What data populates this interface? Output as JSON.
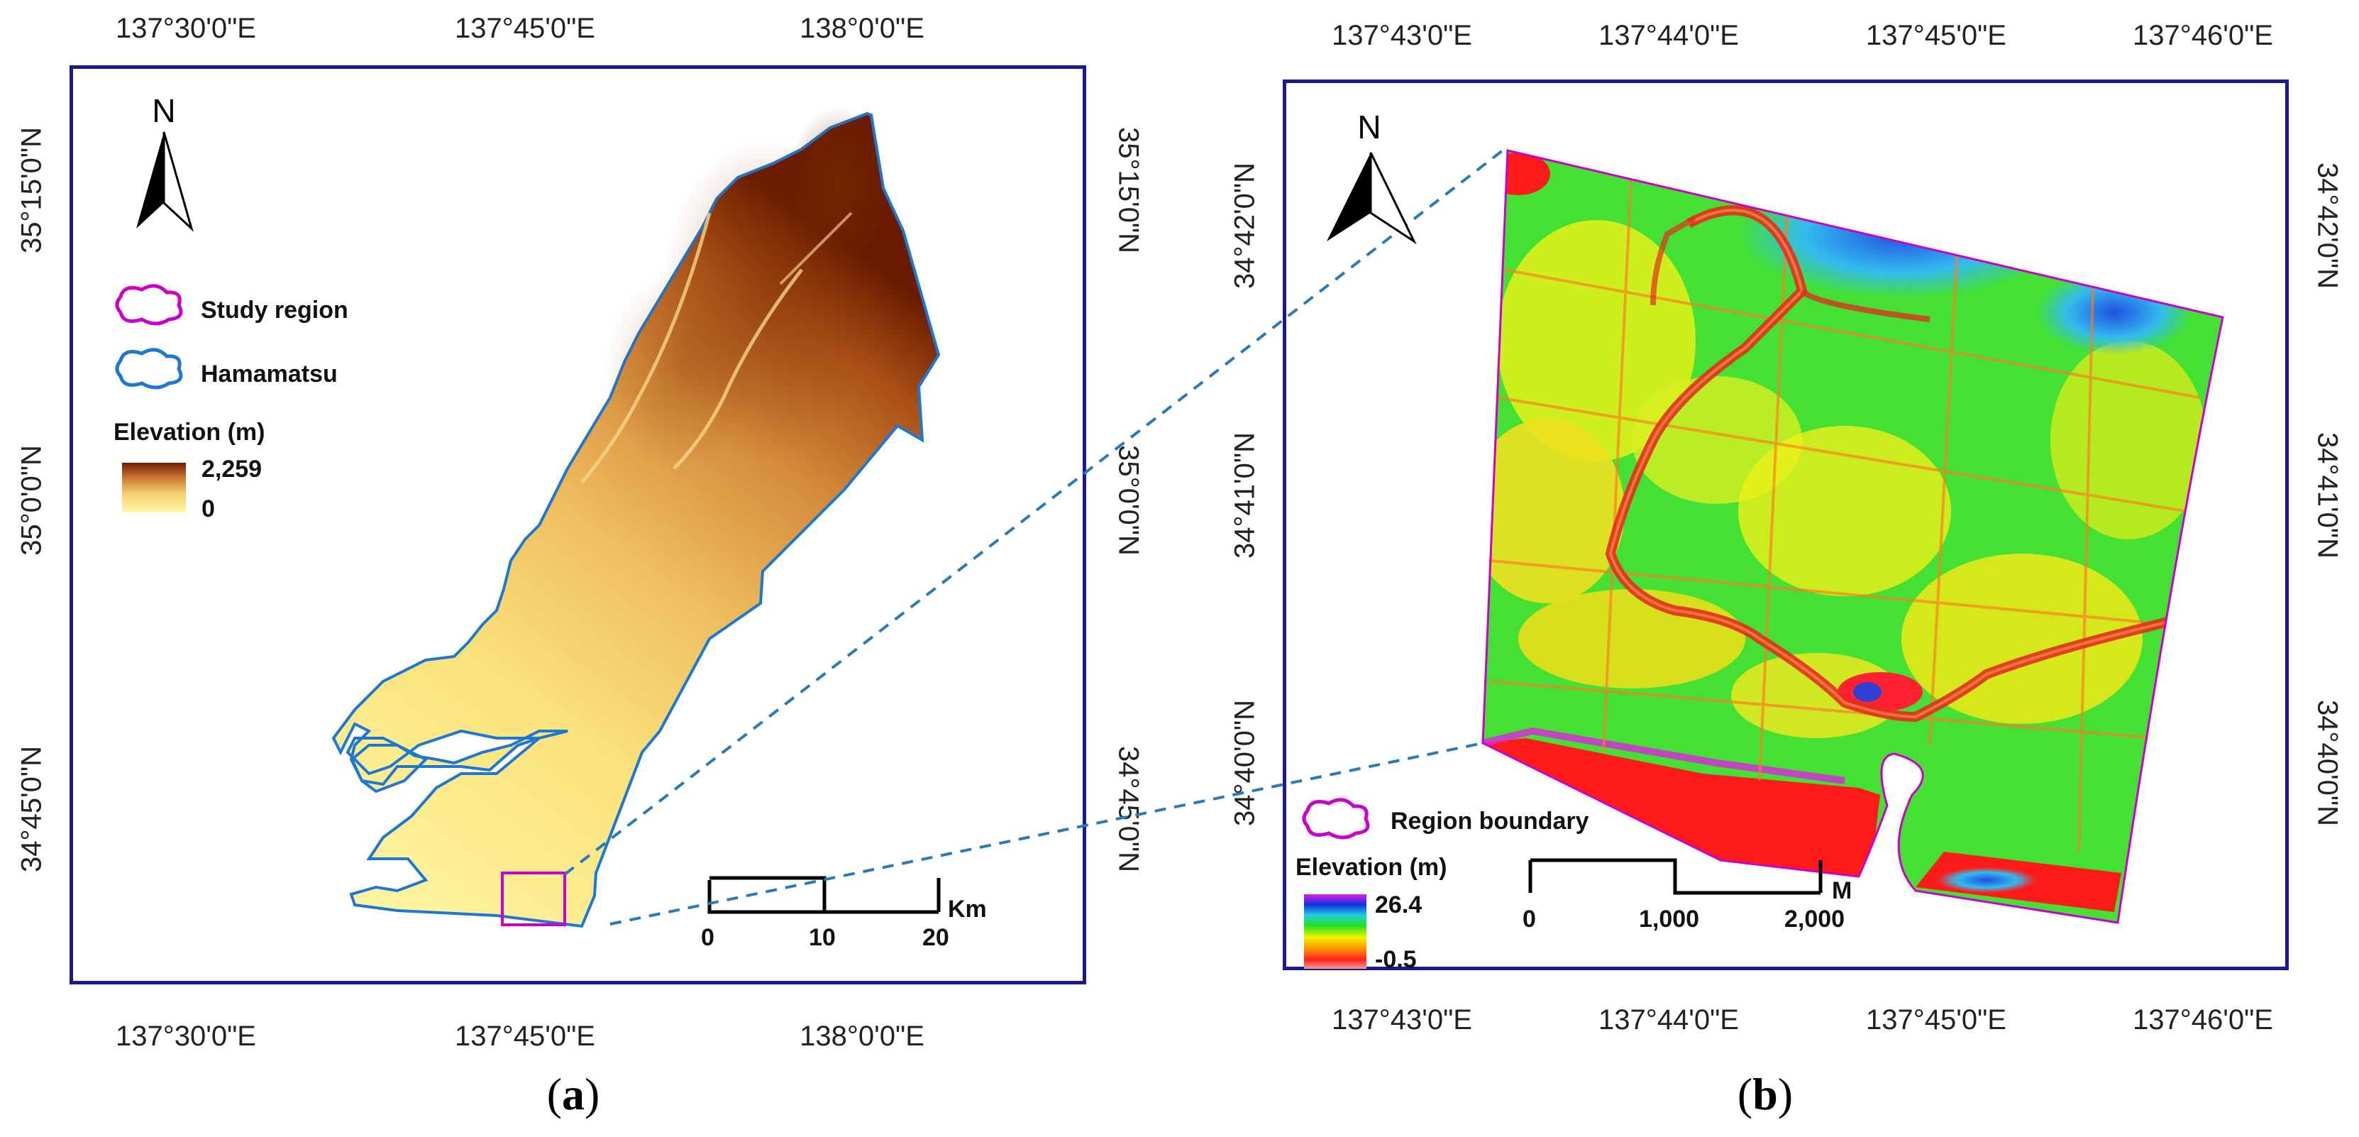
{
  "panel_a": {
    "ticks_top": [
      "137°30'0\"E",
      "137°45'0\"E",
      "138°0'0\"E"
    ],
    "ticks_bottom": [
      "137°30'0\"E",
      "137°45'0\"E",
      "138°0'0\"E"
    ],
    "ticks_left": [
      "35°15'0\"N",
      "35°0'0\"N",
      "34°45'0\"N"
    ],
    "ticks_right": [
      "35°15'0\"N",
      "35°0'0\"N",
      "34°45'0\"N"
    ],
    "north_label": "N",
    "legend": {
      "study_region": "Study region",
      "hamamatsu": "Hamamatsu",
      "elevation_title": "Elevation (m)",
      "elevation_max": "2,259",
      "elevation_min": "0"
    },
    "scalebar": {
      "labels": [
        "0",
        "10",
        "20"
      ],
      "unit": "Km"
    },
    "colors": {
      "study_region": "#cc00cc",
      "hamamatsu": "#1e78d2",
      "dem_high": "#6b1c00",
      "dem_low": "#fff3a0"
    }
  },
  "panel_b": {
    "ticks_top": [
      "137°43'0\"E",
      "137°44'0\"E",
      "137°45'0\"E",
      "137°46'0\"E"
    ],
    "ticks_bottom": [
      "137°43'0\"E",
      "137°44'0\"E",
      "137°45'0\"E",
      "137°46'0\"E"
    ],
    "ticks_left": [
      "34°42'0\"N",
      "34°41'0\"N",
      "34°40'0\"N"
    ],
    "ticks_right": [
      "34°42'0\"N",
      "34°41'0\"N",
      "34°40'0\"N"
    ],
    "north_label": "N",
    "legend": {
      "region_boundary": "Region boundary",
      "elevation_title": "Elevation (m)",
      "elevation_max": "26.4",
      "elevation_min": "-0.5"
    },
    "scalebar": {
      "labels": [
        "0",
        "1,000",
        "2,000"
      ],
      "unit": "M"
    },
    "colors": {
      "boundary": "#cc00cc",
      "connector": "#2a7ab8"
    }
  },
  "captions": {
    "a": "a",
    "b": "b"
  }
}
